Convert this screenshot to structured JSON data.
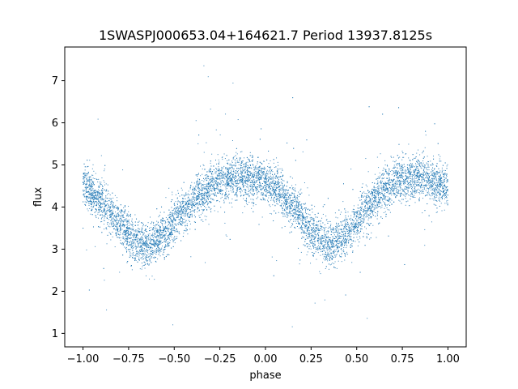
{
  "chart_data": {
    "type": "scatter",
    "title": "1SWASPJ000653.04+164621.7 Period 13937.8125s",
    "xlabel": "phase",
    "ylabel": "flux",
    "xlim": [
      -1.1,
      1.1
    ],
    "ylim": [
      0.68,
      7.8
    ],
    "x_ticks": [
      "−1.00",
      "−0.75",
      "−0.50",
      "−0.25",
      "0.00",
      "0.25",
      "0.50",
      "0.75",
      "1.00"
    ],
    "x_tick_values": [
      -1.0,
      -0.75,
      -0.5,
      -0.25,
      0.0,
      0.25,
      0.5,
      0.75,
      1.0
    ],
    "y_ticks": [
      "1",
      "2",
      "3",
      "4",
      "5",
      "6",
      "7"
    ],
    "y_tick_values": [
      1,
      2,
      3,
      4,
      5,
      6,
      7
    ],
    "grid": false,
    "marker_color": "#1f77b4",
    "series": [
      {
        "phase_range": [
          -1.0,
          1.0
        ],
        "trend": [
          {
            "x": -1.0,
            "y": 4.5
          },
          {
            "x": -0.9,
            "y": 4.15
          },
          {
            "x": -0.8,
            "y": 3.6
          },
          {
            "x": -0.7,
            "y": 3.15
          },
          {
            "x": -0.65,
            "y": 3.1
          },
          {
            "x": -0.55,
            "y": 3.35
          },
          {
            "x": -0.45,
            "y": 3.9
          },
          {
            "x": -0.35,
            "y": 4.35
          },
          {
            "x": -0.25,
            "y": 4.6
          },
          {
            "x": -0.15,
            "y": 4.72
          },
          {
            "x": -0.05,
            "y": 4.65
          },
          {
            "x": 0.05,
            "y": 4.45
          },
          {
            "x": 0.15,
            "y": 4.0
          },
          {
            "x": 0.25,
            "y": 3.45
          },
          {
            "x": 0.35,
            "y": 3.1
          },
          {
            "x": 0.45,
            "y": 3.35
          },
          {
            "x": 0.55,
            "y": 3.9
          },
          {
            "x": 0.65,
            "y": 4.4
          },
          {
            "x": 0.75,
            "y": 4.65
          },
          {
            "x": 0.85,
            "y": 4.72
          },
          {
            "x": 1.0,
            "y": 4.5
          }
        ],
        "scatter_spread": 0.25,
        "outlier_range": [
          1.0,
          7.6
        ]
      }
    ]
  }
}
